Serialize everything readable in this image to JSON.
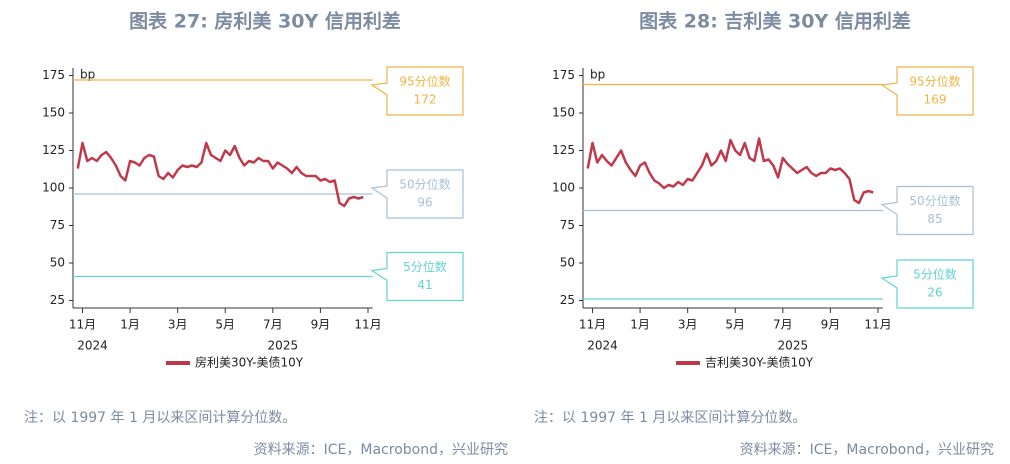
{
  "chart_data": [
    {
      "type": "line",
      "title": "图表 27: 房利美 30Y 信用利差",
      "unit": "bp",
      "ylim": [
        20,
        180
      ],
      "yticks": [
        25,
        50,
        75,
        100,
        125,
        150,
        175
      ],
      "xlim": [
        -1,
        62
      ],
      "xticks": [
        {
          "value": 1,
          "label": "11月"
        },
        {
          "value": 11,
          "label": "1月"
        },
        {
          "value": 21,
          "label": "3月"
        },
        {
          "value": 31,
          "label": "5月"
        },
        {
          "value": 41,
          "label": "7月"
        },
        {
          "value": 51,
          "label": "9月"
        },
        {
          "value": 61,
          "label": "11月"
        }
      ],
      "year_labels": [
        {
          "value": 1,
          "label": "2024"
        },
        {
          "value": 41,
          "label": "2025"
        }
      ],
      "series": [
        {
          "name": "房利美30Y-美债10Y",
          "color": "#c0394b",
          "values": [
            113,
            130,
            118,
            120,
            118,
            122,
            124,
            120,
            115,
            108,
            105,
            118,
            117,
            115,
            120,
            122,
            121,
            108,
            106,
            110,
            107,
            112,
            115,
            114,
            115,
            114,
            117,
            130,
            122,
            120,
            118,
            125,
            122,
            128,
            120,
            115,
            118,
            117,
            120,
            118,
            118,
            113,
            117,
            115,
            113,
            110,
            114,
            110,
            108,
            108,
            108,
            105,
            106,
            104,
            105,
            90,
            88,
            93,
            94,
            93,
            94
          ]
        }
      ],
      "reference_lines": [
        {
          "name": "95分位数",
          "value": 172,
          "color": "#f0b443"
        },
        {
          "name": "50分位数",
          "value": 96,
          "color": "#a9c0d6"
        },
        {
          "name": "5分位数",
          "value": 41,
          "color": "#63d3d3"
        }
      ],
      "note": "注：以 1997 年 1 月以来区间计算分位数。",
      "source": "资料来源：ICE，Macrobond，兴业研究"
    },
    {
      "type": "line",
      "title": "图表 28: 吉利美 30Y 信用利差",
      "unit": "bp",
      "ylim": [
        20,
        180
      ],
      "yticks": [
        25,
        50,
        75,
        100,
        125,
        150,
        175
      ],
      "xlim": [
        -1,
        62
      ],
      "xticks": [
        {
          "value": 1,
          "label": "11月"
        },
        {
          "value": 11,
          "label": "1月"
        },
        {
          "value": 21,
          "label": "3月"
        },
        {
          "value": 31,
          "label": "5月"
        },
        {
          "value": 41,
          "label": "7月"
        },
        {
          "value": 51,
          "label": "9月"
        },
        {
          "value": 61,
          "label": "11月"
        }
      ],
      "year_labels": [
        {
          "value": 1,
          "label": "2024"
        },
        {
          "value": 41,
          "label": "2025"
        }
      ],
      "series": [
        {
          "name": "吉利美30Y-美债10Y",
          "color": "#c0394b",
          "values": [
            113,
            130,
            117,
            122,
            118,
            115,
            120,
            125,
            117,
            112,
            108,
            115,
            117,
            110,
            105,
            103,
            100,
            102,
            101,
            104,
            102,
            106,
            105,
            110,
            115,
            123,
            115,
            118,
            125,
            118,
            132,
            125,
            122,
            130,
            120,
            118,
            133,
            118,
            119,
            115,
            107,
            120,
            116,
            113,
            110,
            112,
            114,
            110,
            108,
            110,
            110,
            113,
            112,
            113,
            110,
            106,
            92,
            90,
            97,
            98,
            97
          ]
        }
      ],
      "reference_lines": [
        {
          "name": "95分位数",
          "value": 169,
          "color": "#f0b443"
        },
        {
          "name": "50分位数",
          "value": 85,
          "color": "#a9c0d6"
        },
        {
          "name": "5分位数",
          "value": 26,
          "color": "#63d3d3"
        }
      ],
      "note": "注：以 1997 年 1 月以来区间计算分位数。",
      "source": "资料来源：ICE，Macrobond，兴业研究"
    }
  ]
}
